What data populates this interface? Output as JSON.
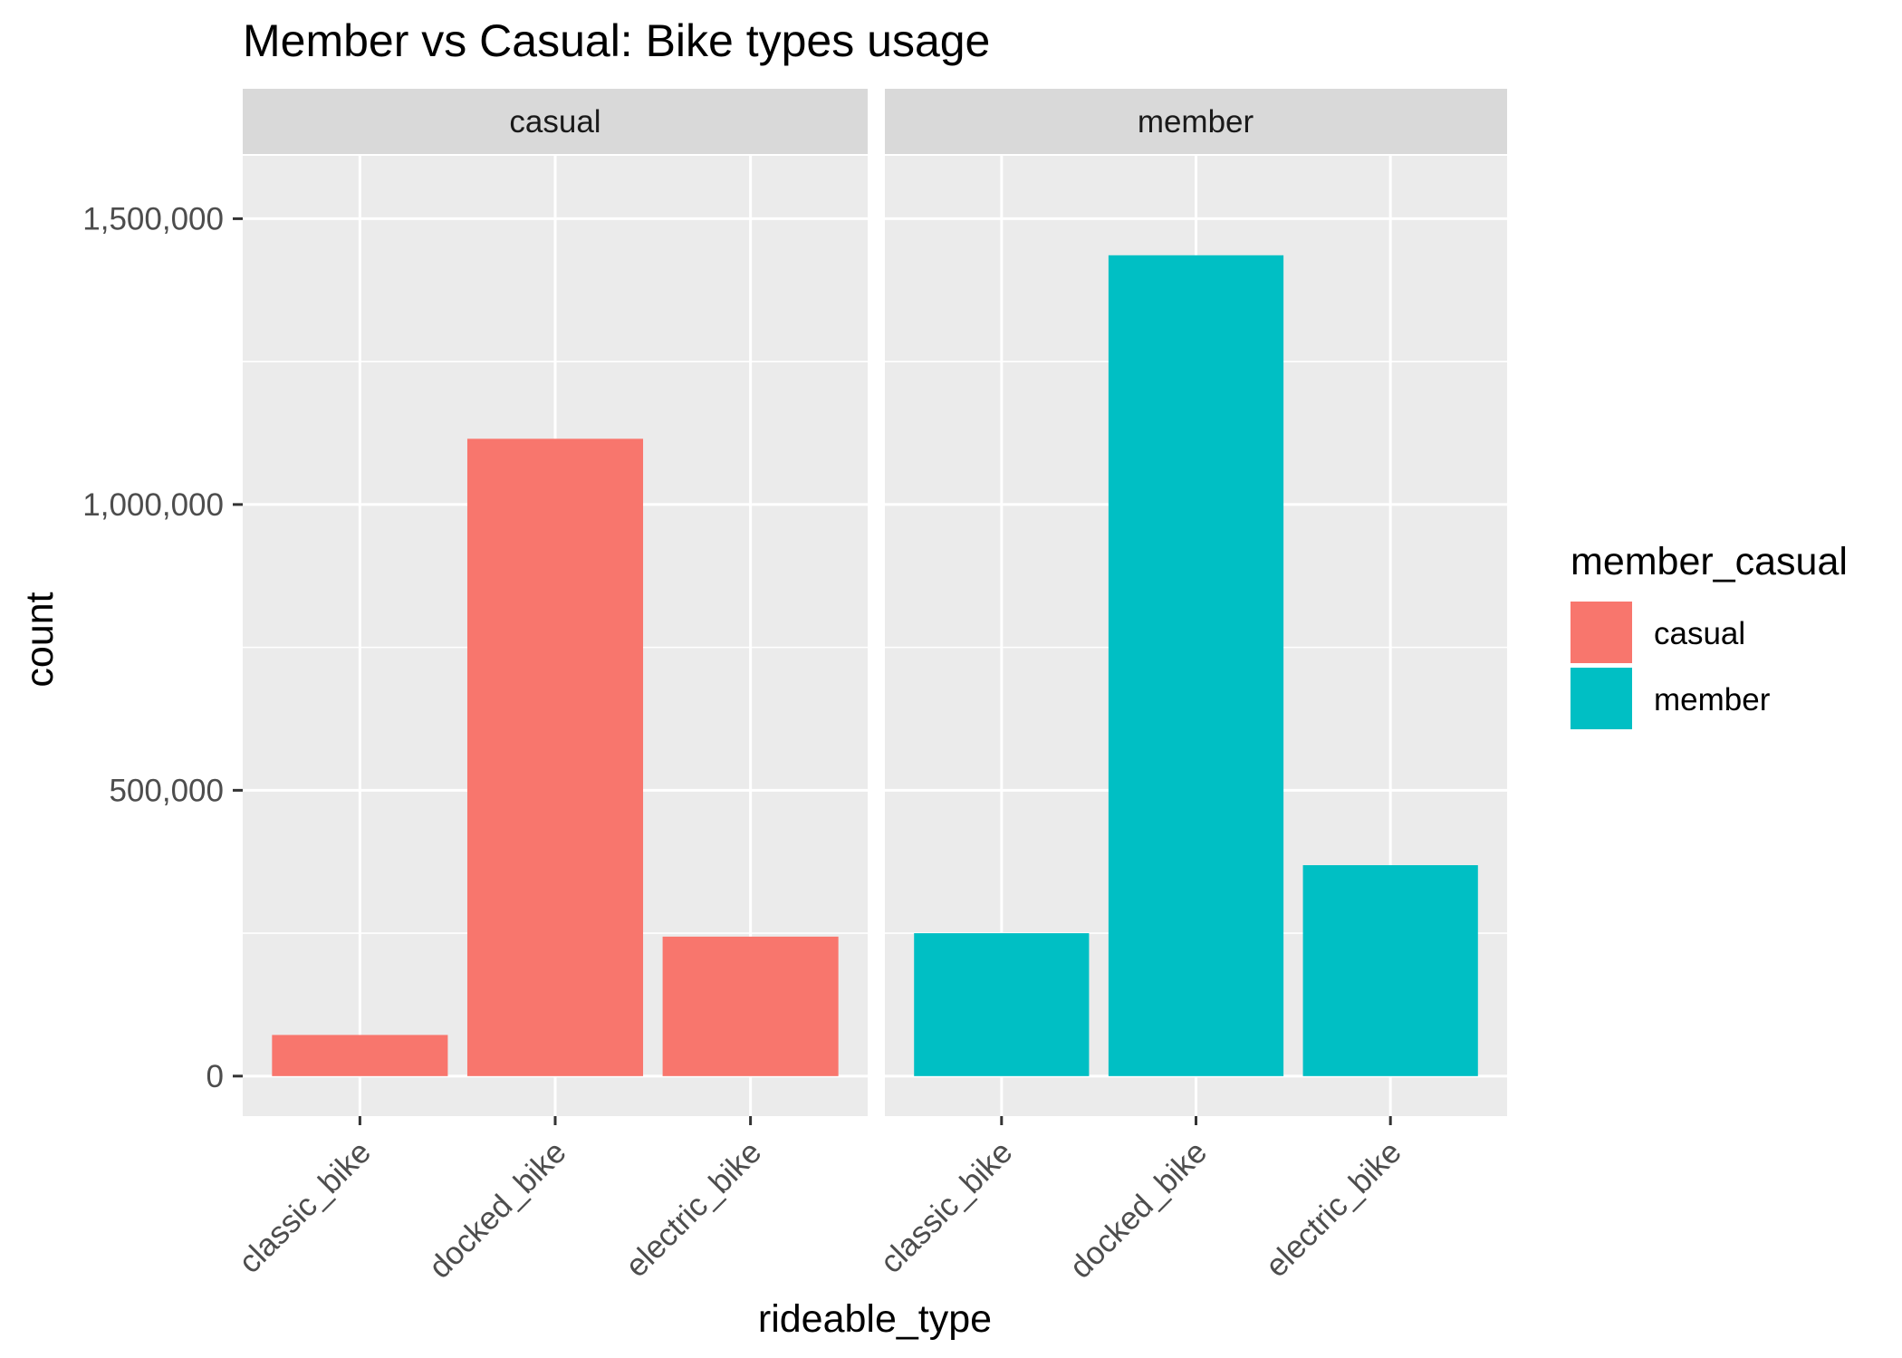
{
  "chart_data": {
    "type": "bar",
    "title": "Member vs Casual: Bike types usage",
    "xlabel": "rideable_type",
    "ylabel": "count",
    "ylim": [
      -70000,
      1610000
    ],
    "yticks": [
      0,
      500000,
      1000000,
      1500000
    ],
    "ytick_labels": [
      "0",
      "500,000",
      "1,000,000",
      "1,500,000"
    ],
    "grid": true,
    "categories": [
      "classic_bike",
      "docked_bike",
      "electric_bike"
    ],
    "facets": [
      {
        "label": "casual",
        "series": "casual",
        "values": [
          72000,
          1115000,
          244000
        ]
      },
      {
        "label": "member",
        "series": "member",
        "values": [
          250000,
          1436000,
          369000
        ]
      }
    ],
    "legend": {
      "title": "member_casual",
      "placement": "right",
      "entries": [
        {
          "name": "casual",
          "color": "#F8766D"
        },
        {
          "name": "member",
          "color": "#00BFC4"
        }
      ]
    }
  }
}
